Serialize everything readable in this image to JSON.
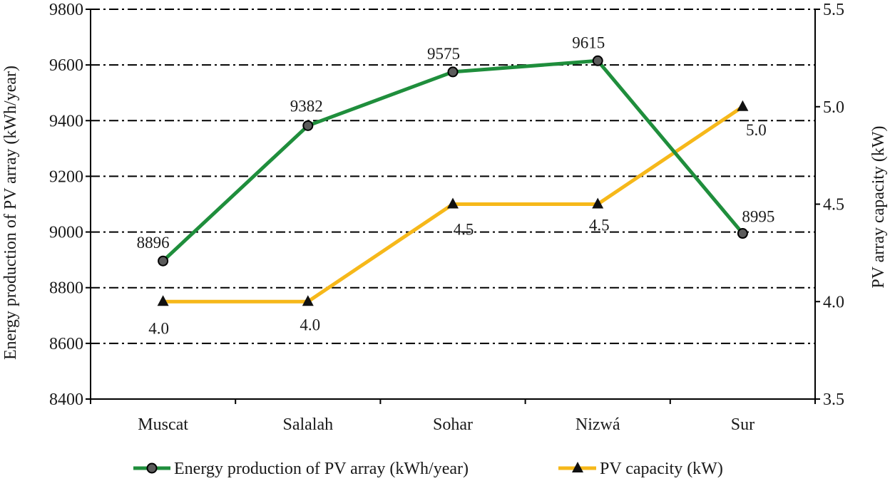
{
  "chart_data": {
    "type": "line",
    "categories": [
      "Muscat",
      "Salalah",
      "Sohar",
      "Nizwá",
      "Sur"
    ],
    "series": [
      {
        "name": "Energy production of PV array (kWh/year)",
        "axis": "left",
        "values": [
          8896,
          9382,
          9575,
          9615,
          8995
        ],
        "labels": [
          "8896",
          "9382",
          "9575",
          "9615",
          "8995"
        ],
        "color": "#1f8e3c",
        "marker": "circle",
        "marker_color": "#5b5b5b"
      },
      {
        "name": "PV capacity (kW)",
        "axis": "right",
        "values": [
          4.0,
          4.0,
          4.5,
          4.5,
          5.0
        ],
        "labels": [
          "4.0",
          "4.0",
          "4.5",
          "4.5",
          "5.0"
        ],
        "color": "#f6b81a",
        "marker": "triangle",
        "marker_color": "#111111"
      }
    ],
    "y_left": {
      "label": "Energy production of PV array (kWh/year)",
      "range": [
        8400,
        9800
      ],
      "ticks": [
        8400,
        8600,
        8800,
        9000,
        9200,
        9400,
        9600,
        9800
      ],
      "tick_labels": [
        "8400",
        "8600",
        "8800",
        "9000",
        "9200",
        "9400",
        "9600",
        "9800"
      ]
    },
    "y_right": {
      "label": "PV array capacity (kW)",
      "range": [
        3.5,
        5.5
      ],
      "ticks": [
        3.5,
        4.0,
        4.5,
        5.0,
        5.5
      ],
      "tick_labels": [
        "3.5",
        "4.0",
        "4.5",
        "5.0",
        "5.5"
      ]
    },
    "grid": true,
    "grid_style": "dash-dot",
    "legend_placement": "bottom"
  }
}
